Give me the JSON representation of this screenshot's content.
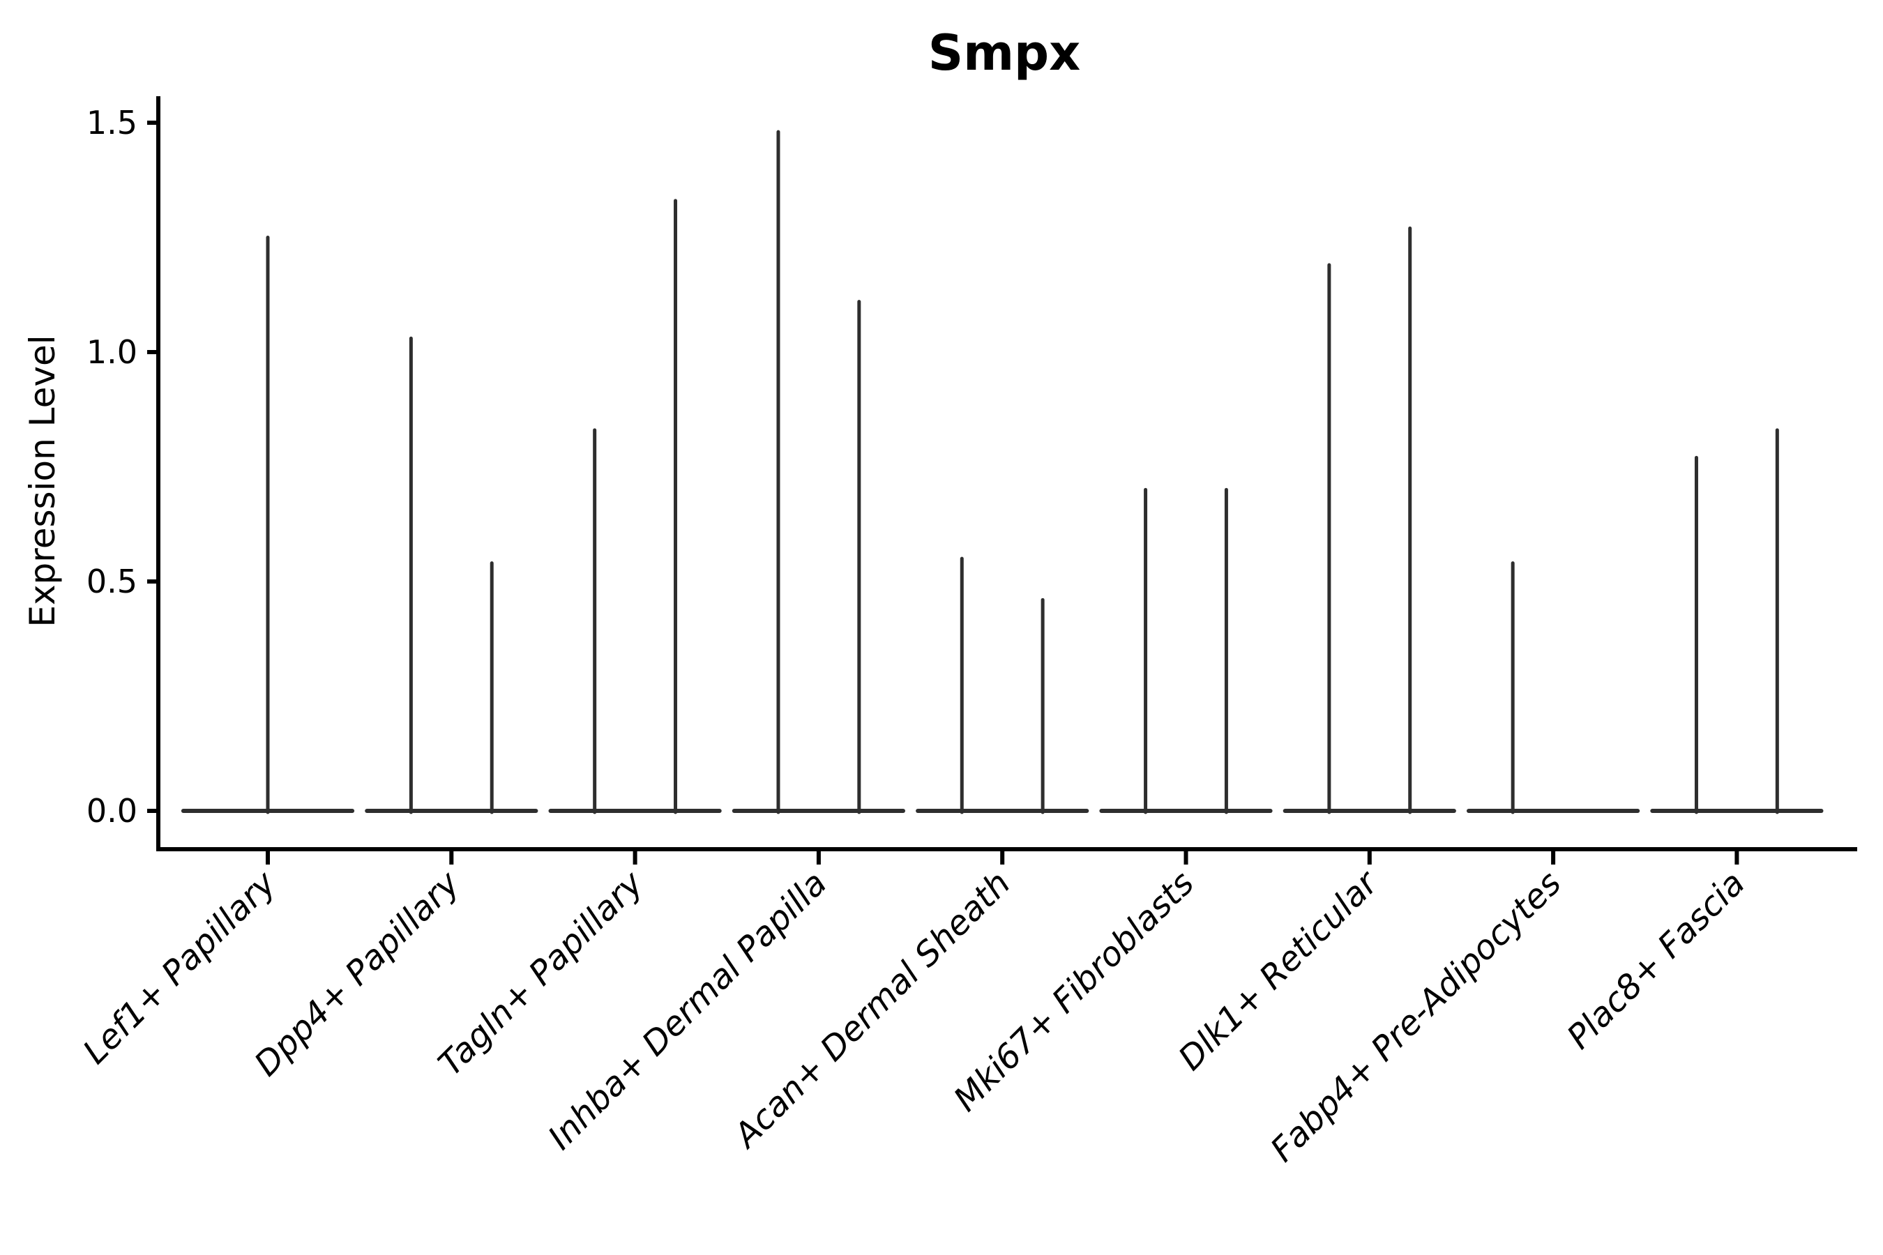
{
  "page": {
    "background": "#ffffff"
  },
  "chart_data": {
    "type": "violin",
    "title": "Smpx",
    "ylabel": "Expression Level",
    "xlabel": "",
    "grid": false,
    "legend": null,
    "ytick_labels": [
      "0.0",
      "0.5",
      "1.0",
      "1.5"
    ],
    "ytick_values": [
      0.0,
      0.5,
      1.0,
      1.5
    ],
    "ylim": [
      -0.08,
      1.56
    ],
    "categories": [
      "Lef1+ Papillary",
      "Dpp4+ Papillary",
      "Tagln+ Papillary",
      "Inhba+ Dermal Papilla",
      "Acan+ Dermal Sheath",
      "Mki67+ Fibroblasts",
      "Dlk1+ Reticular",
      "Fabp4+ Pre-Adipocytes",
      "Plac8+ Fascia"
    ],
    "violins": [
      {
        "category": "Lef1+ Papillary",
        "points": [
          {
            "offset": 0.0,
            "max": 1.25
          }
        ]
      },
      {
        "category": "Dpp4+ Papillary",
        "points": [
          {
            "offset": -0.22,
            "max": 1.03
          },
          {
            "offset": 0.22,
            "max": 0.54
          }
        ]
      },
      {
        "category": "Tagln+ Papillary",
        "points": [
          {
            "offset": -0.22,
            "max": 0.83
          },
          {
            "offset": 0.22,
            "max": 1.33
          }
        ]
      },
      {
        "category": "Inhba+ Dermal Papilla",
        "points": [
          {
            "offset": -0.22,
            "max": 1.48
          },
          {
            "offset": 0.22,
            "max": 1.11
          }
        ]
      },
      {
        "category": "Acan+ Dermal Sheath",
        "points": [
          {
            "offset": -0.22,
            "max": 0.55
          },
          {
            "offset": 0.22,
            "max": 0.46
          }
        ]
      },
      {
        "category": "Mki67+ Fibroblasts",
        "points": [
          {
            "offset": -0.22,
            "max": 0.7
          },
          {
            "offset": 0.22,
            "max": 0.7
          }
        ]
      },
      {
        "category": "Dlk1+ Reticular",
        "points": [
          {
            "offset": -0.22,
            "max": 1.19
          },
          {
            "offset": 0.22,
            "max": 1.27
          }
        ]
      },
      {
        "category": "Fabp4+ Pre-Adipocytes",
        "points": [
          {
            "offset": -0.22,
            "max": 0.54
          },
          {
            "offset": 0.22,
            "max": 0.0
          }
        ]
      },
      {
        "category": "Plac8+ Fascia",
        "points": [
          {
            "offset": -0.22,
            "max": 0.77
          },
          {
            "offset": 0.22,
            "max": 0.83
          }
        ]
      }
    ],
    "colors": {
      "violin": "#2e2e2e",
      "axis": "#000000",
      "text": "#000000",
      "background": "#ffffff"
    }
  }
}
